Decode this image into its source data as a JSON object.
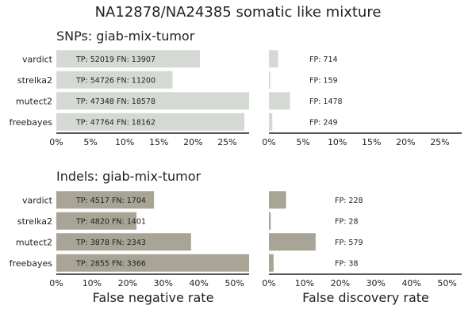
{
  "title": "NA12878/NA24385 somatic like mixture",
  "xlabels": {
    "left": "False negative rate",
    "right": "False discovery rate"
  },
  "colors": {
    "snps": "#d5d9d4",
    "indels": "#a8a496"
  },
  "chart_data": [
    {
      "type": "bar",
      "orientation": "horizontal",
      "title": "SNPs: giab-mix-tumor",
      "metric": "false negative rate",
      "categories": [
        "vardict",
        "strelka2",
        "mutect2",
        "freebayes"
      ],
      "values": [
        0.21,
        0.17,
        0.282,
        0.275
      ],
      "labels": [
        "TP: 52019 FN: 13907",
        "TP: 54726 FN: 11200",
        "TP: 47348 FN: 18578",
        "TP: 47764 FN: 18162"
      ],
      "xlim": [
        0,
        0.282
      ],
      "ticks": [
        0,
        0.05,
        0.1,
        0.15,
        0.2,
        0.25
      ],
      "tick_labels": [
        "0%",
        "5%",
        "10%",
        "15%",
        "20%",
        "25%"
      ]
    },
    {
      "type": "bar",
      "orientation": "horizontal",
      "title": "",
      "metric": "false discovery rate",
      "categories": [
        "vardict",
        "strelka2",
        "mutect2",
        "freebayes"
      ],
      "values": [
        0.0135,
        0.002,
        0.031,
        0.005
      ],
      "labels": [
        "FP: 714",
        "FP: 159",
        "FP: 1478",
        "FP: 249"
      ],
      "xlim": [
        0,
        0.282
      ],
      "ticks": [
        0,
        0.05,
        0.1,
        0.15,
        0.2,
        0.25
      ],
      "tick_labels": [
        "0%",
        "5%",
        "10%",
        "15%",
        "20%",
        "25%"
      ]
    },
    {
      "type": "bar",
      "orientation": "horizontal",
      "title": "Indels: giab-mix-tumor",
      "metric": "false negative rate",
      "categories": [
        "vardict",
        "strelka2",
        "mutect2",
        "freebayes"
      ],
      "values": [
        0.274,
        0.225,
        0.378,
        0.541
      ],
      "labels": [
        "TP: 4517 FN: 1704",
        "TP: 4820 FN: 1401",
        "TP: 3878 FN: 2343",
        "TP: 2855 FN: 3366"
      ],
      "xlim": [
        0,
        0.541
      ],
      "ticks": [
        0,
        0.1,
        0.2,
        0.3,
        0.4,
        0.5
      ],
      "tick_labels": [
        "0%",
        "10%",
        "20%",
        "30%",
        "40%",
        "50%"
      ]
    },
    {
      "type": "bar",
      "orientation": "horizontal",
      "title": "",
      "metric": "false discovery rate",
      "categories": [
        "vardict",
        "strelka2",
        "mutect2",
        "freebayes"
      ],
      "values": [
        0.048,
        0.005,
        0.131,
        0.013
      ],
      "labels": [
        "FP: 228",
        "FP: 28",
        "FP: 579",
        "FP: 38"
      ],
      "xlim": [
        0,
        0.541
      ],
      "ticks": [
        0,
        0.1,
        0.2,
        0.3,
        0.4,
        0.5
      ],
      "tick_labels": [
        "0%",
        "10%",
        "20%",
        "30%",
        "40%",
        "50%"
      ]
    }
  ]
}
